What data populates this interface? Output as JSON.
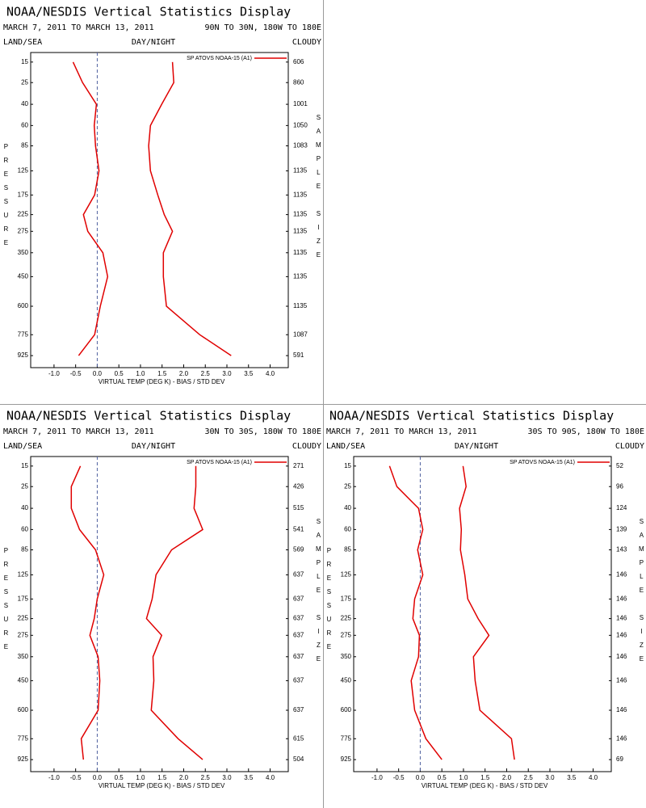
{
  "chart_data": [
    {
      "type": "line",
      "title": "NOAA/NESDIS Vertical Statistics Display",
      "subtitle": "MARCH 7, 2011 TO MARCH 13, 2011",
      "region": "90N TO 30N, 180W TO 180E",
      "land_sea_label": "LAND/SEA",
      "day_night_label": "DAY/NIGHT",
      "cloud_label": "CLOUDY",
      "ylabel": "PRESSURE",
      "y2label": "SAMPLE SIZE",
      "xlabel": "VIRTUAL TEMP (DEG K) - BIAS / STD DEV",
      "levels": [
        15,
        25,
        40,
        60,
        85,
        125,
        175,
        225,
        275,
        350,
        450,
        600,
        775,
        925
      ],
      "ylim": [
        1020,
        11.5
      ],
      "yticks": [
        15,
        25,
        40,
        60,
        85,
        125,
        175,
        225,
        275,
        350,
        450,
        600,
        775,
        925
      ],
      "xlim": [
        -1.54,
        4.42
      ],
      "xticks": [
        {
          "value": -1,
          "label": "-1.0"
        },
        -0.5,
        {
          "value": 0,
          "label": "0.0"
        },
        0.5,
        {
          "value": 1,
          "label": "1.0"
        },
        1.5,
        {
          "value": 2,
          "label": "2.0"
        },
        2.5,
        {
          "value": 3,
          "label": "3.0"
        },
        3.5,
        {
          "value": 4,
          "label": "4.0"
        }
      ],
      "sample_sizes": [
        606,
        860,
        1001,
        1050,
        1083,
        1135,
        1135,
        1135,
        1135,
        1135,
        1135,
        1135,
        1087,
        591
      ],
      "legend": "top-right",
      "series": [
        {
          "name": "SP ATOVS NOAA-15 (A1)",
          "color": "#e00000",
          "values": [
            -0.56,
            -0.34,
            -0.02,
            -0.07,
            -0.04,
            0.04,
            -0.06,
            -0.32,
            -0.22,
            0.13,
            0.24,
            0.07,
            -0.06,
            -0.43
          ],
          "std_dev": [
            1.74,
            1.77,
            1.49,
            1.23,
            1.19,
            1.23,
            1.4,
            1.55,
            1.74,
            1.53,
            1.53,
            1.6,
            2.37,
            3.1
          ]
        }
      ]
    },
    {
      "type": "line",
      "title": "NOAA/NESDIS Vertical Statistics Display",
      "subtitle": "MARCH 7, 2011 TO MARCH 13, 2011",
      "region": "30N TO 30S, 180W TO 180E",
      "land_sea_label": "LAND/SEA",
      "day_night_label": "DAY/NIGHT",
      "cloud_label": "CLOUDY",
      "ylabel": "PRESSURE",
      "y2label": "SAMPLE SIZE",
      "xlabel": "VIRTUAL TEMP (DEG K) - BIAS / STD DEV",
      "levels": [
        15,
        25,
        40,
        60,
        85,
        125,
        175,
        225,
        275,
        350,
        450,
        600,
        775,
        925
      ],
      "ylim": [
        1020,
        11.5
      ],
      "yticks": [
        15,
        25,
        40,
        60,
        85,
        125,
        175,
        225,
        275,
        350,
        450,
        600,
        775,
        925
      ],
      "xlim": [
        -1.54,
        4.42
      ],
      "xticks": [
        {
          "value": -1,
          "label": "-1.0"
        },
        -0.5,
        {
          "value": 0,
          "label": "0.0"
        },
        0.5,
        {
          "value": 1,
          "label": "1.0"
        },
        1.5,
        {
          "value": 2,
          "label": "2.0"
        },
        2.5,
        {
          "value": 3,
          "label": "3.0"
        },
        3.5,
        {
          "value": 4,
          "label": "4.0"
        }
      ],
      "sample_sizes": [
        271,
        426,
        515,
        541,
        569,
        637,
        637,
        637,
        637,
        637,
        637,
        637,
        615,
        504
      ],
      "legend": "top-right",
      "series": [
        {
          "name": "SP ATOVS NOAA-15 (A1)",
          "color": "#e00000",
          "values": [
            -0.39,
            -0.6,
            -0.6,
            -0.41,
            -0.04,
            0.15,
            0.0,
            -0.07,
            -0.17,
            0.02,
            0.06,
            0.02,
            -0.37,
            -0.32
          ],
          "std_dev": [
            2.28,
            2.28,
            2.24,
            2.44,
            1.72,
            1.36,
            1.27,
            1.14,
            1.49,
            1.29,
            1.31,
            1.25,
            1.87,
            2.44
          ]
        }
      ]
    },
    {
      "type": "line",
      "title": "NOAA/NESDIS Vertical Statistics Display",
      "subtitle": "MARCH 7, 2011 TO MARCH 13, 2011",
      "region": "30S TO 90S, 180W TO 180E",
      "land_sea_label": "LAND/SEA",
      "day_night_label": "DAY/NIGHT",
      "cloud_label": "CLOUDY",
      "ylabel": "PRESSURE",
      "y2label": "SAMPLE SIZE",
      "xlabel": "VIRTUAL TEMP (DEG K) - BIAS / STD DEV",
      "levels": [
        15,
        25,
        40,
        60,
        85,
        125,
        175,
        225,
        275,
        350,
        450,
        600,
        775,
        925
      ],
      "ylim": [
        1020,
        11.5
      ],
      "yticks": [
        15,
        25,
        40,
        60,
        85,
        125,
        175,
        225,
        275,
        350,
        450,
        600,
        775,
        925
      ],
      "xlim": [
        -1.54,
        4.42
      ],
      "xticks": [
        {
          "value": -1,
          "label": "-1.0"
        },
        -0.5,
        {
          "value": 0,
          "label": "0.0"
        },
        0.5,
        {
          "value": 1,
          "label": "1.0"
        },
        1.5,
        {
          "value": 2,
          "label": "2.0"
        },
        2.5,
        {
          "value": 3,
          "label": "3.0"
        },
        3.5,
        {
          "value": 4,
          "label": "4.0"
        }
      ],
      "sample_sizes": [
        52,
        96,
        124,
        139,
        143,
        146,
        146,
        146,
        146,
        146,
        146,
        146,
        146,
        69
      ],
      "legend": "top-right",
      "series": [
        {
          "name": "SP ATOVS NOAA-15 (A1)",
          "color": "#e00000",
          "values": [
            -0.71,
            -0.54,
            -0.04,
            0.06,
            -0.06,
            0.06,
            -0.13,
            -0.17,
            -0.02,
            -0.04,
            -0.21,
            -0.13,
            0.13,
            0.5
          ],
          "std_dev": [
            0.99,
            1.06,
            0.91,
            0.95,
            0.93,
            1.03,
            1.1,
            1.34,
            1.59,
            1.23,
            1.27,
            1.38,
            2.11,
            2.18
          ]
        }
      ]
    }
  ]
}
